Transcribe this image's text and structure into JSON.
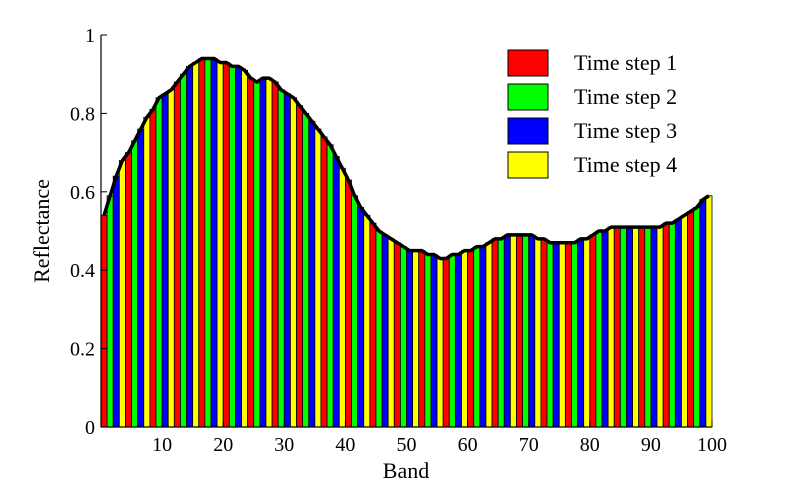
{
  "chart_data": {
    "type": "bar",
    "title": "",
    "xlabel": "Band",
    "ylabel": "Reflectance",
    "xlim": [
      0,
      100
    ],
    "ylim": [
      0,
      1
    ],
    "grid": false,
    "legend_position": "top-right",
    "x_ticks": [
      "10",
      "20",
      "30",
      "40",
      "50",
      "60",
      "70",
      "80",
      "90",
      "100"
    ],
    "y_ticks": [
      "0",
      "0.2",
      "0.4",
      "0.6",
      "0.8",
      "1"
    ],
    "series": [
      {
        "name": "Time step 1",
        "color": "#ff0000"
      },
      {
        "name": "Time step 2",
        "color": "#00ff00"
      },
      {
        "name": "Time step 3",
        "color": "#0000ff"
      },
      {
        "name": "Time step 4",
        "color": "#ffff00"
      }
    ],
    "bands": [
      1,
      2,
      3,
      4,
      5,
      6,
      7,
      8,
      9,
      10,
      11,
      12,
      13,
      14,
      15,
      16,
      17,
      18,
      19,
      20,
      21,
      22,
      23,
      24,
      25,
      26,
      27,
      28,
      29,
      30,
      31,
      32,
      33,
      34,
      35,
      36,
      37,
      38,
      39,
      40,
      41,
      42,
      43,
      44,
      45,
      46,
      47,
      48,
      49,
      50,
      51,
      52,
      53,
      54,
      55,
      56,
      57,
      58,
      59,
      60,
      61,
      62,
      63,
      64,
      65,
      66,
      67,
      68,
      69,
      70,
      71,
      72,
      73,
      74,
      75,
      76,
      77,
      78,
      79,
      80,
      81,
      82,
      83,
      84,
      85,
      86,
      87,
      88,
      89,
      90,
      91,
      92,
      93,
      94,
      95,
      96,
      97,
      98,
      99,
      100
    ],
    "values": [
      0.54,
      0.59,
      0.64,
      0.68,
      0.7,
      0.73,
      0.76,
      0.79,
      0.81,
      0.84,
      0.85,
      0.86,
      0.88,
      0.9,
      0.92,
      0.93,
      0.94,
      0.94,
      0.94,
      0.93,
      0.93,
      0.92,
      0.92,
      0.91,
      0.89,
      0.88,
      0.89,
      0.89,
      0.88,
      0.86,
      0.85,
      0.84,
      0.82,
      0.8,
      0.78,
      0.76,
      0.74,
      0.72,
      0.69,
      0.66,
      0.63,
      0.59,
      0.56,
      0.54,
      0.52,
      0.5,
      0.49,
      0.48,
      0.47,
      0.46,
      0.45,
      0.45,
      0.45,
      0.44,
      0.44,
      0.43,
      0.43,
      0.44,
      0.44,
      0.45,
      0.45,
      0.46,
      0.46,
      0.47,
      0.48,
      0.48,
      0.49,
      0.49,
      0.49,
      0.49,
      0.49,
      0.48,
      0.48,
      0.47,
      0.47,
      0.47,
      0.47,
      0.47,
      0.48,
      0.48,
      0.49,
      0.5,
      0.5,
      0.51,
      0.51,
      0.51,
      0.51,
      0.51,
      0.51,
      0.51,
      0.51,
      0.51,
      0.52,
      0.52,
      0.53,
      0.54,
      0.55,
      0.56,
      0.58,
      0.59
    ],
    "time_step_cycle": [
      "Time step 1",
      "Time step 2",
      "Time step 3",
      "Time step 4"
    ]
  }
}
